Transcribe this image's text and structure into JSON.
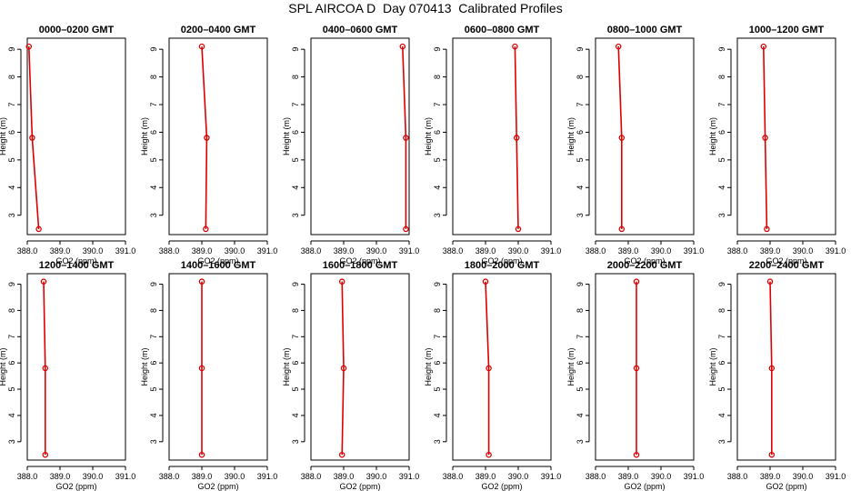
{
  "title": "SPL AIRCOA D  Day 070413  Calibrated Profiles",
  "colors": {
    "profile": "#dd0000",
    "axis": "#000000",
    "background": "#ffffff"
  },
  "chart_data": {
    "type": "line",
    "xlabel": "GO2 (ppm)",
    "ylabel": "Height (m)",
    "xlim": [
      388.0,
      391.0
    ],
    "x_ticks": [
      "388.0",
      "389.0",
      "390.0",
      "391.0"
    ],
    "ylim": [
      2.3,
      9.4
    ],
    "y_ticks": [
      "3",
      "4",
      "5",
      "6",
      "7",
      "8",
      "9"
    ],
    "heights": [
      9.1,
      5.8,
      2.5
    ],
    "grid": false,
    "panels": [
      {
        "title": "0000–0200 GMT",
        "values": [
          388.05,
          388.15,
          388.35
        ]
      },
      {
        "title": "0200–0400 GMT",
        "values": [
          389.0,
          389.15,
          389.12
        ]
      },
      {
        "title": "0400–0600 GMT",
        "values": [
          390.8,
          390.9,
          390.9
        ]
      },
      {
        "title": "0600–0800 GMT",
        "values": [
          389.9,
          389.95,
          390.0
        ]
      },
      {
        "title": "0800–1000 GMT",
        "values": [
          388.7,
          388.8,
          388.8
        ]
      },
      {
        "title": "1000–1200 GMT",
        "values": [
          388.8,
          388.85,
          388.9
        ]
      },
      {
        "title": "1200–1400 GMT",
        "values": [
          388.5,
          388.55,
          388.55
        ]
      },
      {
        "title": "1400–1600 GMT",
        "values": [
          389.0,
          389.0,
          389.0
        ]
      },
      {
        "title": "1600–1800 GMT",
        "values": [
          388.95,
          389.0,
          388.95
        ]
      },
      {
        "title": "1800–2000 GMT",
        "values": [
          389.0,
          389.1,
          389.1
        ]
      },
      {
        "title": "2000–2200 GMT",
        "values": [
          389.25,
          389.25,
          389.25
        ]
      },
      {
        "title": "2200–2400 GMT",
        "values": [
          389.0,
          389.05,
          389.05
        ]
      }
    ]
  }
}
